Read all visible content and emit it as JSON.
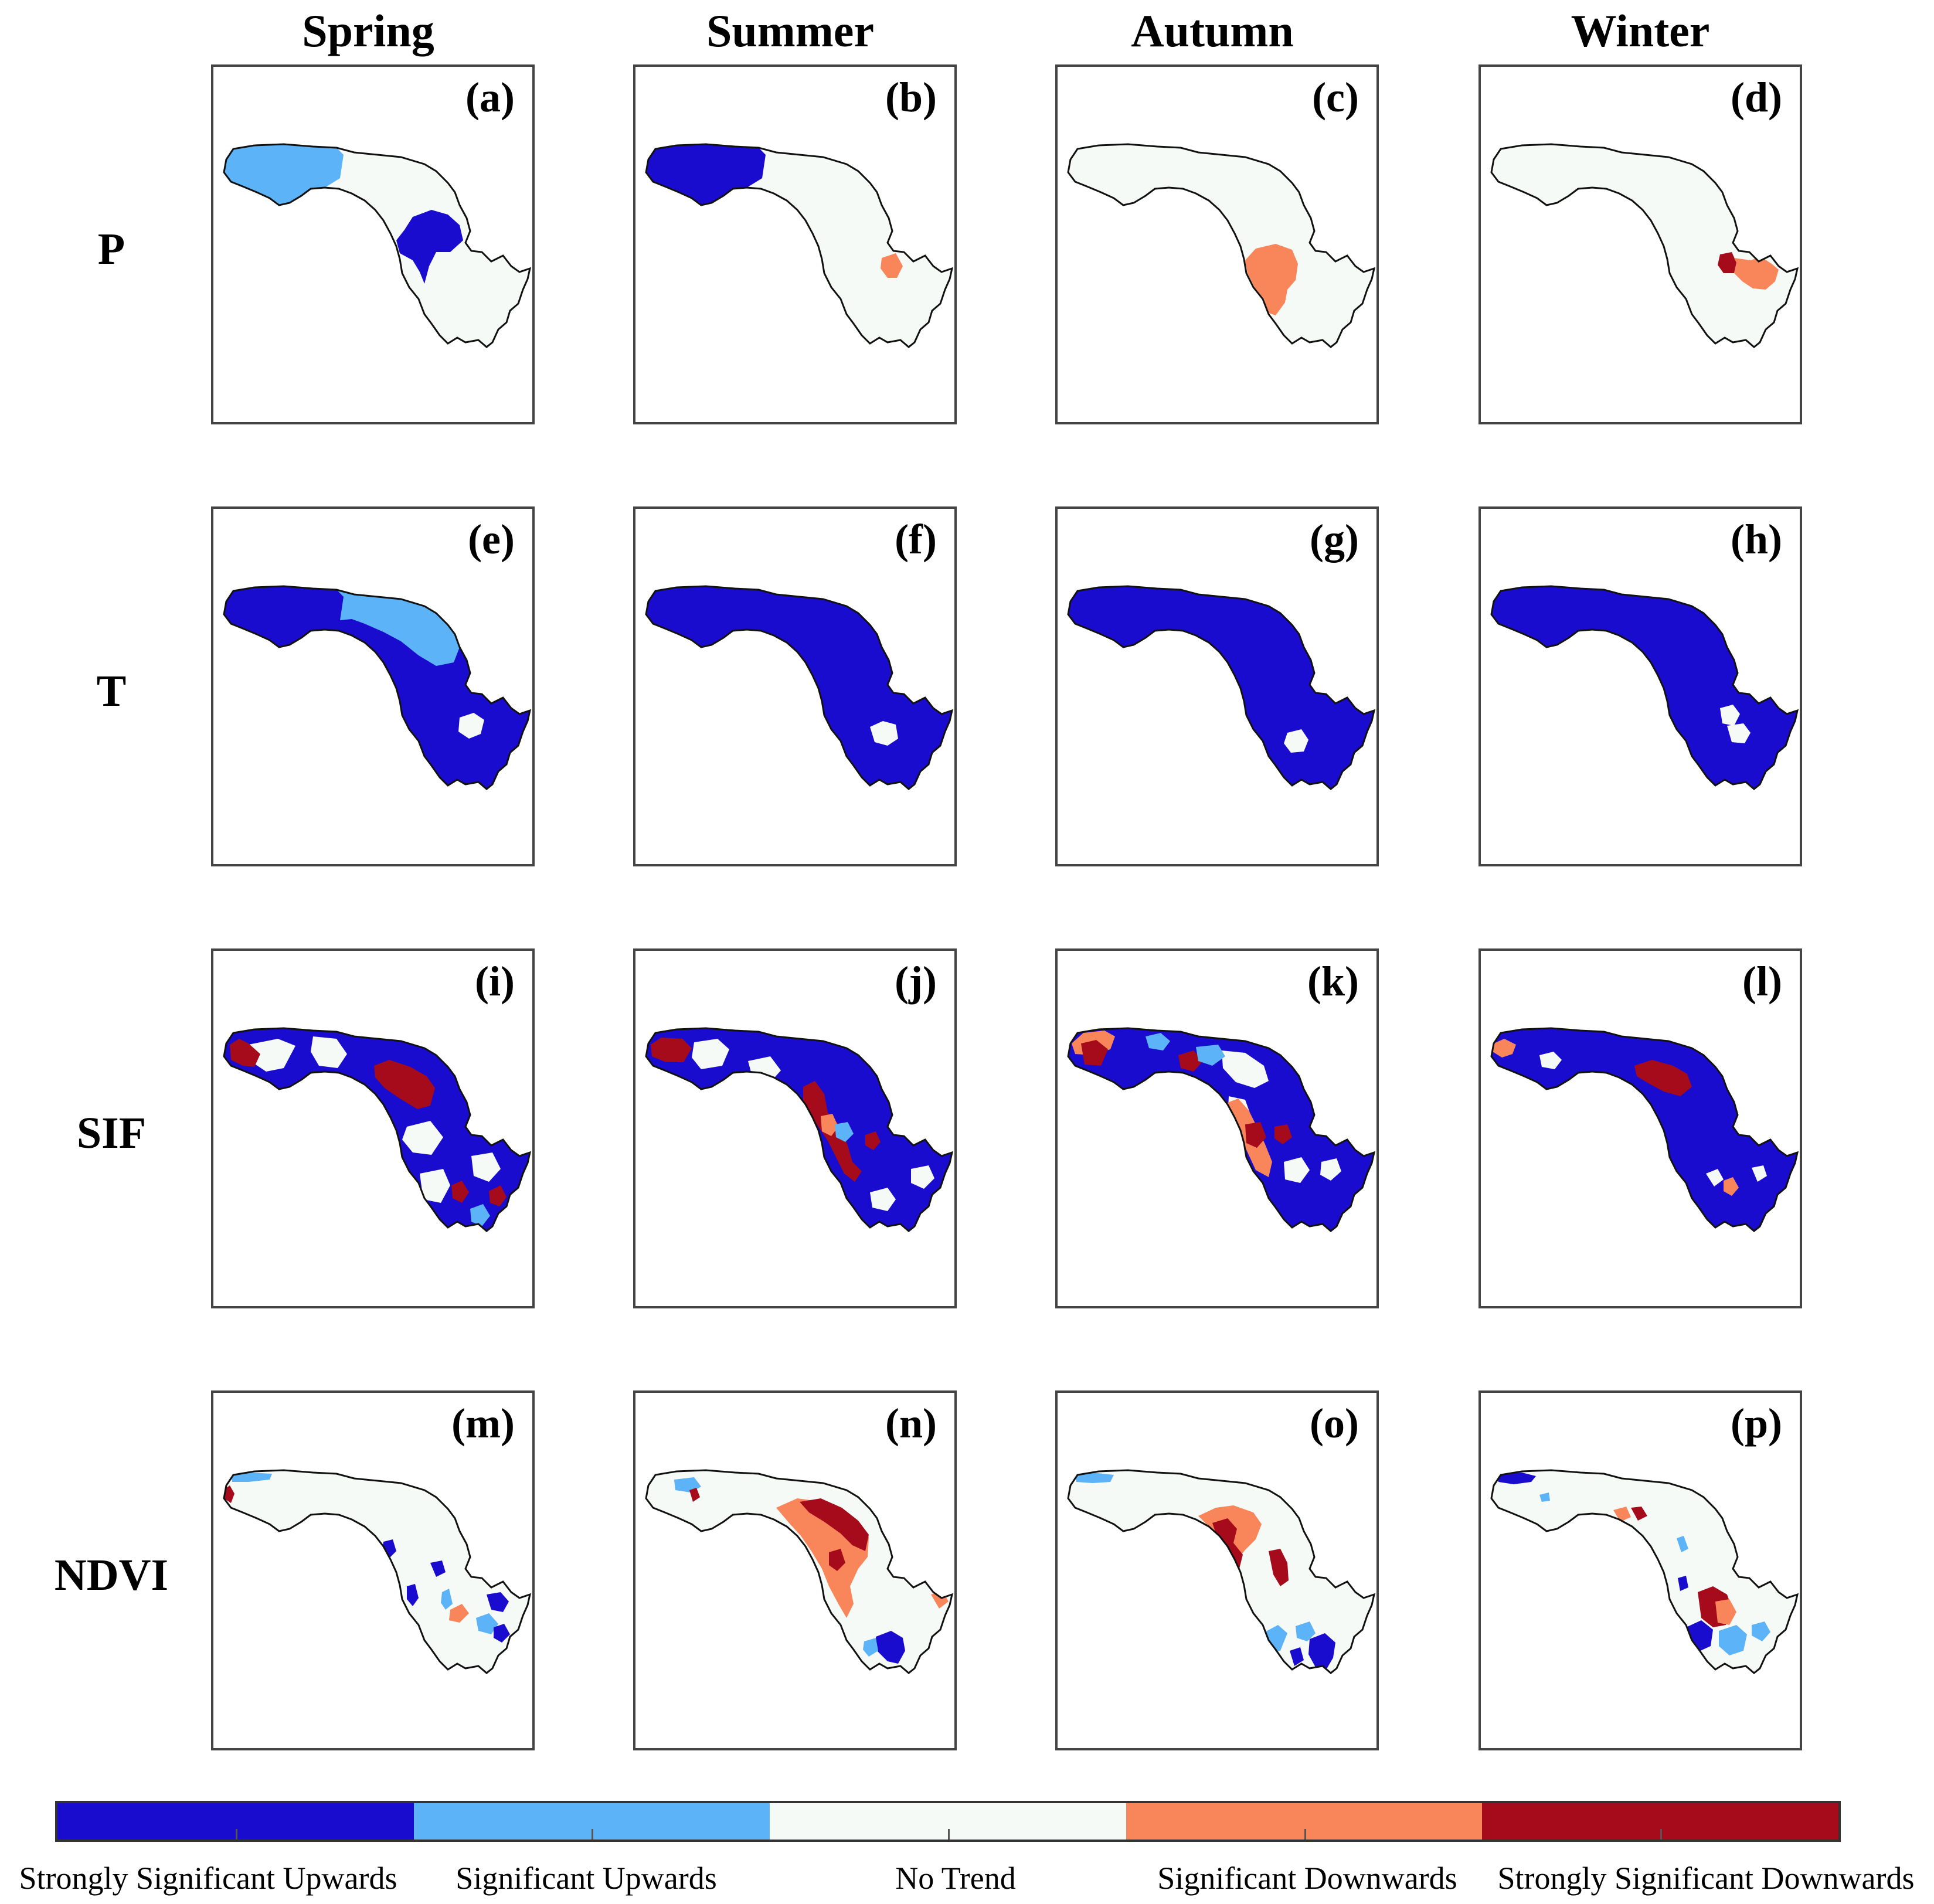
{
  "columns": [
    "Spring",
    "Summer",
    "Autumn",
    "Winter"
  ],
  "rows": [
    "P",
    "T",
    "SIF",
    "NDVI"
  ],
  "panels": [
    "(a)",
    "(b)",
    "(c)",
    "(d)",
    "(e)",
    "(f)",
    "(g)",
    "(h)",
    "(i)",
    "(j)",
    "(k)",
    "(l)",
    "(m)",
    "(n)",
    "(o)",
    "(p)"
  ],
  "legend": {
    "categories": [
      {
        "label": "Strongly Significant Upwards",
        "color": "#1a0ccf"
      },
      {
        "label": "Significant Upwards",
        "color": "#5db3f7"
      },
      {
        "label": "No Trend",
        "color": "#f6faf6"
      },
      {
        "label": "Significant Downwards",
        "color": "#f8865a"
      },
      {
        "label": "Strongly Significant Downwards",
        "color": "#a50b1a"
      }
    ]
  },
  "panel_fill": {
    "(a)": [
      "Significant Upwards",
      "Strongly Significant Upwards",
      "No Trend"
    ],
    "(b)": [
      "Strongly Significant Upwards",
      "Significant Downwards",
      "No Trend"
    ],
    "(c)": [
      "Significant Downwards",
      "No Trend"
    ],
    "(d)": [
      "Strongly Significant Downwards",
      "Significant Downwards",
      "No Trend"
    ],
    "(e)": [
      "Strongly Significant Upwards",
      "Significant Upwards",
      "No Trend"
    ],
    "(f)": [
      "Strongly Significant Upwards",
      "No Trend"
    ],
    "(g)": [
      "Strongly Significant Upwards",
      "No Trend"
    ],
    "(h)": [
      "Strongly Significant Upwards",
      "No Trend"
    ],
    "(i)": [
      "Strongly Significant Upwards",
      "Strongly Significant Downwards",
      "Significant Upwards",
      "No Trend"
    ],
    "(j)": [
      "Strongly Significant Upwards",
      "Strongly Significant Downwards",
      "Significant Downwards",
      "Significant Upwards"
    ],
    "(k)": [
      "Strongly Significant Upwards",
      "Significant Downwards",
      "Strongly Significant Downwards",
      "Significant Upwards"
    ],
    "(l)": [
      "Strongly Significant Upwards",
      "Strongly Significant Downwards",
      "Significant Downwards"
    ],
    "(m)": [
      "Significant Upwards",
      "Strongly Significant Upwards",
      "Significant Downwards",
      "Strongly Significant Downwards"
    ],
    "(n)": [
      "Strongly Significant Downwards",
      "Significant Downwards",
      "Strongly Significant Upwards",
      "Significant Upwards"
    ],
    "(o)": [
      "Significant Downwards",
      "Strongly Significant Downwards",
      "Significant Upwards",
      "Strongly Significant Upwards"
    ],
    "(p)": [
      "Strongly Significant Upwards",
      "Significant Upwards",
      "Strongly Significant Downwards",
      "Significant Downwards"
    ]
  }
}
